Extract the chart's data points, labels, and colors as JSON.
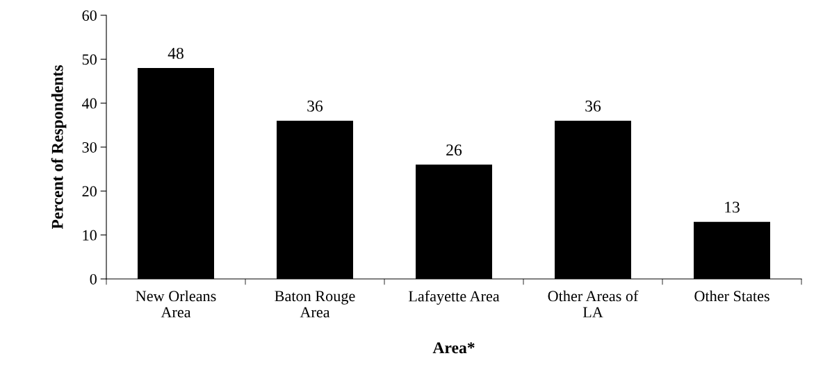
{
  "chart_data": {
    "type": "bar",
    "xlabel": "Area*",
    "ylabel": "Percent of Respondents",
    "categories": [
      "New Orleans\nArea",
      "Baton Rouge\nArea",
      "Lafayette Area",
      "Other Areas of\nLA",
      "Other States"
    ],
    "values": [
      48,
      36,
      26,
      36,
      13
    ],
    "color": "#000000",
    "ylim": [
      0,
      60
    ],
    "yticks": [
      0,
      10,
      20,
      30,
      40,
      50,
      60
    ],
    "grid": false,
    "data_labels": true,
    "legend": false
  }
}
